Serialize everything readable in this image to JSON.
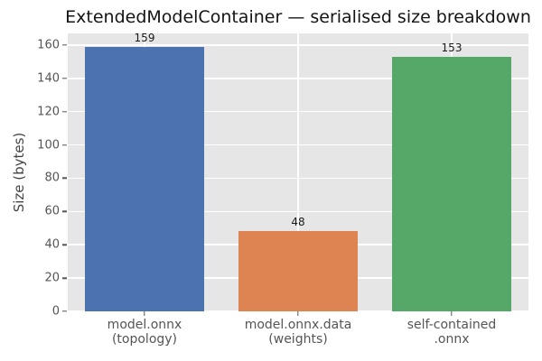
{
  "chart_data": {
    "type": "bar",
    "title": "ExtendedModelContainer — serialised size breakdown",
    "ylabel": "Size (bytes)",
    "xlabel": "",
    "categories": [
      [
        "model.onnx",
        "(topology)"
      ],
      [
        "model.onnx.data",
        "(weights)"
      ],
      [
        "self-contained",
        ".onnx"
      ]
    ],
    "values": [
      159,
      48,
      153
    ],
    "value_labels": [
      "159",
      "48",
      "153"
    ],
    "bar_colors": [
      "#4c72b0",
      "#dd8452",
      "#55a868"
    ],
    "ylim": [
      0,
      167
    ],
    "yticks": [
      0,
      20,
      40,
      60,
      80,
      100,
      120,
      140,
      160
    ],
    "grid": true,
    "legend": false,
    "plot_background_color": "#e6e6e6",
    "gridline_color": "#ffffff",
    "tick_color": "#555555",
    "figure_background_color": "#ffffff"
  }
}
